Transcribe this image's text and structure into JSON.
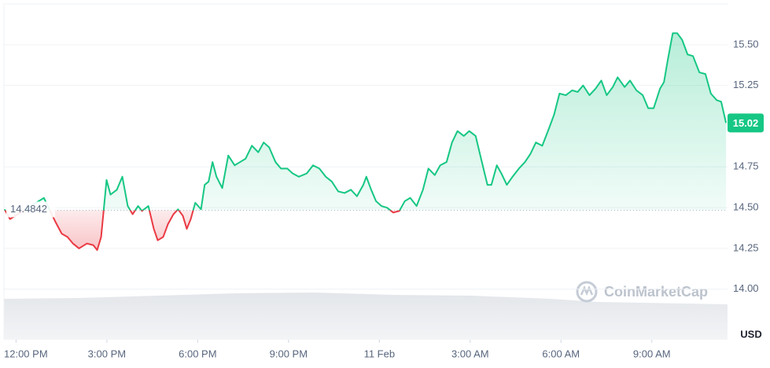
{
  "chart_data": {
    "type": "line",
    "x": [
      -0.38,
      -0.2,
      0.92,
      1.31,
      1.51,
      1.7,
      1.88,
      2.08,
      2.34,
      2.55,
      2.68,
      2.81,
      2.99,
      3.12,
      3.33,
      3.51,
      3.69,
      3.85,
      4.03,
      4.16,
      4.37,
      4.55,
      4.68,
      4.86,
      5.02,
      5.2,
      5.35,
      5.51,
      5.64,
      5.77,
      5.92,
      6.11,
      6.23,
      6.36,
      6.49,
      6.62,
      6.81,
      7.01,
      7.22,
      7.4,
      7.58,
      7.79,
      8.0,
      8.18,
      8.36,
      8.57,
      8.75,
      8.96,
      9.14,
      9.34,
      9.6,
      9.81,
      10.02,
      10.23,
      10.43,
      10.64,
      10.85,
      11.06,
      11.26,
      11.47,
      11.57,
      11.73,
      11.89,
      12.07,
      12.25,
      12.46,
      12.66,
      12.84,
      13.02,
      13.23,
      13.44,
      13.62,
      13.83,
      14.01,
      14.22,
      14.4,
      14.58,
      14.79,
      14.97,
      15.18,
      15.36,
      15.57,
      15.7,
      15.88,
      16.03,
      16.21,
      16.4,
      16.61,
      16.81,
      16.99,
      17.17,
      17.38,
      17.59,
      17.77,
      17.95,
      18.16,
      18.37,
      18.55,
      18.73,
      18.94,
      19.14,
      19.33,
      19.51,
      19.71,
      19.87,
      20.1,
      20.28,
      20.49,
      20.7,
      20.88,
      21.06,
      21.27,
      21.4,
      21.53,
      21.69,
      21.84,
      22.0,
      22.18,
      22.36,
      22.57,
      22.77,
      22.95,
      23.14,
      23.29,
      23.45
    ],
    "values": [
      14.49,
      14.43,
      14.56,
      14.41,
      14.34,
      14.32,
      14.28,
      14.25,
      14.28,
      14.27,
      14.24,
      14.32,
      14.67,
      14.58,
      14.61,
      14.69,
      14.51,
      14.46,
      14.51,
      14.48,
      14.51,
      14.37,
      14.3,
      14.32,
      14.4,
      14.46,
      14.49,
      14.45,
      14.37,
      14.43,
      14.53,
      14.49,
      14.64,
      14.66,
      14.78,
      14.69,
      14.62,
      14.82,
      14.76,
      14.78,
      14.8,
      14.88,
      14.84,
      14.9,
      14.87,
      14.78,
      14.74,
      14.74,
      14.71,
      14.69,
      14.71,
      14.76,
      14.74,
      14.69,
      14.66,
      14.6,
      14.59,
      14.61,
      14.57,
      14.64,
      14.69,
      14.61,
      14.54,
      14.51,
      14.5,
      14.47,
      14.48,
      14.54,
      14.56,
      14.51,
      14.61,
      14.74,
      14.7,
      14.76,
      14.78,
      14.9,
      14.97,
      14.94,
      14.97,
      14.94,
      14.8,
      14.64,
      14.64,
      14.76,
      14.71,
      14.64,
      14.69,
      14.74,
      14.78,
      14.83,
      14.9,
      14.88,
      14.98,
      15.07,
      15.2,
      15.19,
      15.22,
      15.21,
      15.25,
      15.19,
      15.23,
      15.28,
      15.19,
      15.24,
      15.3,
      15.24,
      15.28,
      15.22,
      15.19,
      15.11,
      15.11,
      15.23,
      15.27,
      15.41,
      15.57,
      15.57,
      15.53,
      15.44,
      15.43,
      15.33,
      15.32,
      15.2,
      15.16,
      15.15,
      15.02
    ],
    "baseline": 14.4842,
    "current_price": 15.02,
    "up_color": "#16c784",
    "down_color": "#ea3943",
    "xlim": [
      -0.4,
      23.5
    ],
    "xticks": [
      {
        "value": 0,
        "label": "12:00 PM"
      },
      {
        "value": 3,
        "label": "3:00 PM"
      },
      {
        "value": 6,
        "label": "6:00 PM"
      },
      {
        "value": 9,
        "label": "9:00 PM"
      },
      {
        "value": 12,
        "label": "11 Feb"
      },
      {
        "value": 15,
        "label": "3:00 AM"
      },
      {
        "value": 18,
        "label": "6:00 AM"
      },
      {
        "value": 21,
        "label": "9:00 AM"
      }
    ],
    "ylim": [
      13.69,
      15.75
    ],
    "yticks": [
      {
        "value": 14,
        "label": "14.00"
      },
      {
        "value": 14.25,
        "label": "14.25"
      },
      {
        "value": 14.5,
        "label": "14.50"
      },
      {
        "value": 14.75,
        "label": "14.75"
      },
      {
        "value": 15.25,
        "label": "15.25"
      },
      {
        "value": 15.5,
        "label": "15.50"
      }
    ],
    "y_axis_unit": "USD",
    "watermark": "CoinMarketCap",
    "grid": true
  }
}
